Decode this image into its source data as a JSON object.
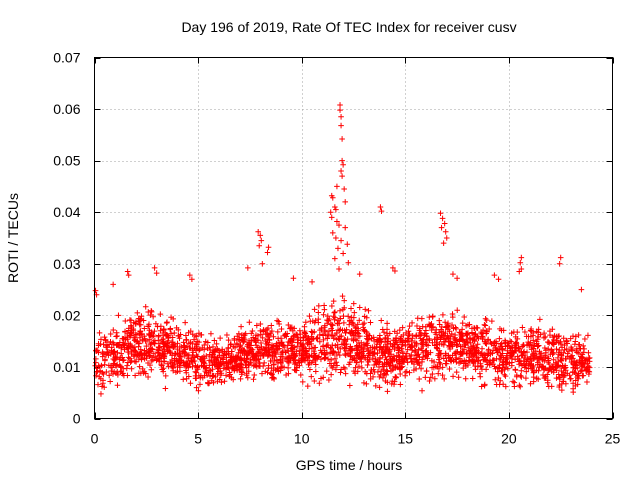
{
  "chart_data": {
    "type": "scatter",
    "title": "Day 196 of 2019, Rate Of TEC Index for receiver cusv",
    "xlabel": "GPS time / hours",
    "ylabel": "ROTI / TECUs",
    "xlim": [
      0,
      25
    ],
    "ylim": [
      0,
      0.07
    ],
    "xticks": [
      0,
      5,
      10,
      15,
      20,
      25
    ],
    "xtick_labels": [
      "0",
      "5",
      "10",
      "15",
      "20",
      "25"
    ],
    "yticks": [
      0,
      0.01,
      0.02,
      0.03,
      0.04,
      0.05,
      0.06,
      0.07
    ],
    "ytick_labels": [
      "0",
      "0.01",
      "0.02",
      "0.03",
      "0.04",
      "0.05",
      "0.06",
      "0.07"
    ],
    "grid": true,
    "marker": "plus",
    "color": "#ff0000",
    "series": [
      {
        "name": "ROTI",
        "baseline_envelope": [
          [
            0.0,
            0.003,
            0.016
          ],
          [
            1.0,
            0.004,
            0.02
          ],
          [
            2.0,
            0.005,
            0.022
          ],
          [
            3.0,
            0.006,
            0.023
          ],
          [
            4.0,
            0.005,
            0.02
          ],
          [
            5.0,
            0.005,
            0.018
          ],
          [
            6.0,
            0.005,
            0.016
          ],
          [
            7.0,
            0.006,
            0.018
          ],
          [
            8.0,
            0.006,
            0.02
          ],
          [
            9.0,
            0.005,
            0.02
          ],
          [
            10.0,
            0.005,
            0.02
          ],
          [
            11.0,
            0.006,
            0.023
          ],
          [
            12.0,
            0.005,
            0.025
          ],
          [
            13.0,
            0.004,
            0.022
          ],
          [
            14.0,
            0.003,
            0.02
          ],
          [
            15.0,
            0.004,
            0.02
          ],
          [
            16.0,
            0.005,
            0.022
          ],
          [
            17.0,
            0.006,
            0.023
          ],
          [
            18.0,
            0.006,
            0.021
          ],
          [
            19.0,
            0.004,
            0.02
          ],
          [
            20.0,
            0.004,
            0.019
          ],
          [
            21.0,
            0.004,
            0.019
          ],
          [
            22.0,
            0.004,
            0.019
          ],
          [
            23.0,
            0.003,
            0.018
          ],
          [
            23.9,
            0.004,
            0.016
          ]
        ],
        "highlight_points": [
          [
            11.85,
            0.0608
          ],
          [
            11.85,
            0.0598
          ],
          [
            11.9,
            0.0585
          ],
          [
            11.9,
            0.0568
          ],
          [
            11.95,
            0.0542
          ],
          [
            11.95,
            0.05
          ],
          [
            12.0,
            0.0492
          ],
          [
            11.9,
            0.048
          ],
          [
            11.95,
            0.047
          ],
          [
            11.7,
            0.045
          ],
          [
            12.05,
            0.0445
          ],
          [
            11.45,
            0.0432
          ],
          [
            11.5,
            0.0428
          ],
          [
            12.1,
            0.042
          ],
          [
            11.6,
            0.041
          ],
          [
            11.65,
            0.0405
          ],
          [
            11.4,
            0.04
          ],
          [
            11.45,
            0.039
          ],
          [
            11.7,
            0.0382
          ],
          [
            11.8,
            0.0375
          ],
          [
            12.1,
            0.037
          ],
          [
            11.5,
            0.036
          ],
          [
            11.65,
            0.035
          ],
          [
            11.9,
            0.0345
          ],
          [
            12.2,
            0.0338
          ],
          [
            11.75,
            0.033
          ],
          [
            12.0,
            0.032
          ],
          [
            11.6,
            0.031
          ],
          [
            12.25,
            0.0302
          ],
          [
            11.8,
            0.029
          ],
          [
            13.8,
            0.041
          ],
          [
            13.85,
            0.0402
          ],
          [
            16.7,
            0.0398
          ],
          [
            16.8,
            0.0388
          ],
          [
            16.9,
            0.0378
          ],
          [
            16.75,
            0.037
          ],
          [
            16.95,
            0.0362
          ],
          [
            17.0,
            0.035
          ],
          [
            16.85,
            0.034
          ],
          [
            7.9,
            0.0362
          ],
          [
            8.0,
            0.0355
          ],
          [
            8.05,
            0.0345
          ],
          [
            7.95,
            0.0335
          ],
          [
            8.4,
            0.0332
          ],
          [
            8.35,
            0.0322
          ],
          [
            7.4,
            0.0292
          ],
          [
            8.1,
            0.03
          ],
          [
            20.6,
            0.0312
          ],
          [
            20.55,
            0.0302
          ],
          [
            20.6,
            0.029
          ],
          [
            20.5,
            0.0285
          ],
          [
            22.5,
            0.0312
          ],
          [
            22.45,
            0.03
          ],
          [
            0.05,
            0.0248
          ],
          [
            0.1,
            0.024
          ],
          [
            0.9,
            0.026
          ],
          [
            1.6,
            0.0285
          ],
          [
            1.65,
            0.0278
          ],
          [
            2.9,
            0.0292
          ],
          [
            3.0,
            0.0282
          ],
          [
            4.6,
            0.0278
          ],
          [
            4.7,
            0.027
          ],
          [
            12.8,
            0.028
          ],
          [
            14.4,
            0.0292
          ],
          [
            14.5,
            0.0286
          ],
          [
            17.3,
            0.028
          ],
          [
            17.5,
            0.0272
          ],
          [
            19.3,
            0.0278
          ],
          [
            19.5,
            0.027
          ],
          [
            23.5,
            0.025
          ],
          [
            9.6,
            0.0272
          ],
          [
            10.5,
            0.0265
          ]
        ]
      }
    ]
  }
}
